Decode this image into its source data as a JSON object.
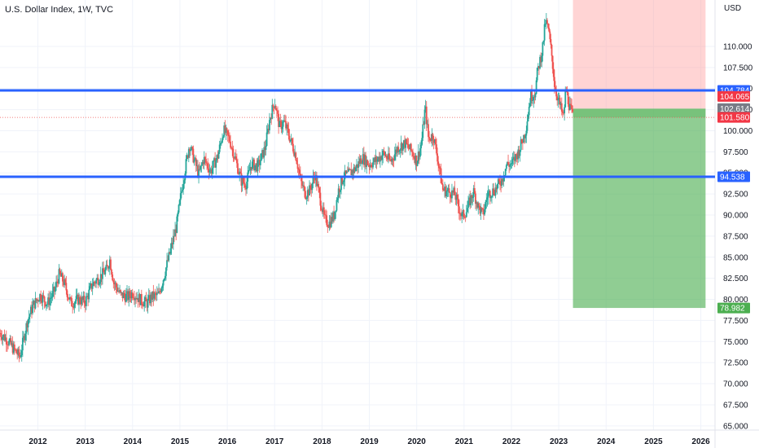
{
  "header": {
    "title": "U.S. Dollar Index, 1W, TVC",
    "currency": "USD"
  },
  "colors": {
    "up": "#26a69a",
    "down": "#ef5350",
    "level_line": "#2962ff",
    "target_zone": "#4caf50",
    "stop_zone": "#ff9999",
    "current_price_line": "#ef5350"
  },
  "chart_data": {
    "type": "candlestick",
    "interval": "1W",
    "xlabel": "",
    "ylabel": "",
    "x_ticks": [
      "2012",
      "2013",
      "2014",
      "2015",
      "2016",
      "2017",
      "2018",
      "2019",
      "2020",
      "2021",
      "2022",
      "2023",
      "2024",
      "2025",
      "2026"
    ],
    "y_ticks": [
      "65.000",
      "67.500",
      "70.000",
      "72.500",
      "75.000",
      "77.500",
      "80.000",
      "82.500",
      "85.000",
      "87.500",
      "90.000",
      "92.500",
      "95.000",
      "97.500",
      "100.000",
      "102.500",
      "105.000",
      "107.500",
      "110.000"
    ],
    "ylim": [
      64.5,
      115.5
    ],
    "xlim": [
      2011.2,
      2026.3
    ],
    "grid": true,
    "price_path": [
      [
        2011.2,
        76.0
      ],
      [
        2011.35,
        75.2
      ],
      [
        2011.5,
        74.0
      ],
      [
        2011.62,
        73.2
      ],
      [
        2011.78,
        77.5
      ],
      [
        2011.9,
        79.3
      ],
      [
        2012.05,
        80.5
      ],
      [
        2012.2,
        79.5
      ],
      [
        2012.35,
        81.0
      ],
      [
        2012.45,
        83.0
      ],
      [
        2012.55,
        82.0
      ],
      [
        2012.7,
        79.5
      ],
      [
        2012.85,
        80.0
      ],
      [
        2013.0,
        79.7
      ],
      [
        2013.15,
        81.8
      ],
      [
        2013.3,
        82.6
      ],
      [
        2013.45,
        83.5
      ],
      [
        2013.52,
        84.7
      ],
      [
        2013.6,
        82.0
      ],
      [
        2013.75,
        80.5
      ],
      [
        2013.9,
        80.3
      ],
      [
        2014.0,
        80.8
      ],
      [
        2014.15,
        80.0
      ],
      [
        2014.3,
        79.5
      ],
      [
        2014.4,
        80.3
      ],
      [
        2014.55,
        80.5
      ],
      [
        2014.65,
        82.5
      ],
      [
        2014.8,
        85.8
      ],
      [
        2014.92,
        88.5
      ],
      [
        2015.05,
        93.5
      ],
      [
        2015.2,
        98.4
      ],
      [
        2015.3,
        96.5
      ],
      [
        2015.4,
        94.8
      ],
      [
        2015.5,
        96.7
      ],
      [
        2015.65,
        95.2
      ],
      [
        2015.8,
        97.0
      ],
      [
        2015.92,
        100.1
      ],
      [
        2016.05,
        98.9
      ],
      [
        2016.15,
        97.0
      ],
      [
        2016.3,
        94.0
      ],
      [
        2016.4,
        93.7
      ],
      [
        2016.5,
        96.0
      ],
      [
        2016.65,
        95.8
      ],
      [
        2016.8,
        98.0
      ],
      [
        2016.9,
        101.5
      ],
      [
        2017.0,
        103.5
      ],
      [
        2017.1,
        100.5
      ],
      [
        2017.2,
        101.0
      ],
      [
        2017.3,
        99.5
      ],
      [
        2017.45,
        97.0
      ],
      [
        2017.55,
        94.0
      ],
      [
        2017.65,
        92.5
      ],
      [
        2017.75,
        93.0
      ],
      [
        2017.85,
        94.8
      ],
      [
        2017.95,
        92.2
      ],
      [
        2018.05,
        89.5
      ],
      [
        2018.15,
        89.0
      ],
      [
        2018.25,
        89.9
      ],
      [
        2018.35,
        93.0
      ],
      [
        2018.45,
        94.5
      ],
      [
        2018.55,
        94.8
      ],
      [
        2018.7,
        95.5
      ],
      [
        2018.85,
        96.8
      ],
      [
        2019.0,
        96.0
      ],
      [
        2019.15,
        96.5
      ],
      [
        2019.3,
        97.3
      ],
      [
        2019.45,
        96.3
      ],
      [
        2019.6,
        98.0
      ],
      [
        2019.75,
        98.5
      ],
      [
        2019.9,
        97.5
      ],
      [
        2020.0,
        96.4
      ],
      [
        2020.1,
        98.5
      ],
      [
        2020.18,
        102.8
      ],
      [
        2020.25,
        99.0
      ],
      [
        2020.35,
        99.5
      ],
      [
        2020.45,
        96.5
      ],
      [
        2020.55,
        93.0
      ],
      [
        2020.65,
        92.8
      ],
      [
        2020.8,
        92.5
      ],
      [
        2020.95,
        89.8
      ],
      [
        2021.05,
        90.5
      ],
      [
        2021.2,
        92.8
      ],
      [
        2021.3,
        91.0
      ],
      [
        2021.4,
        90.0
      ],
      [
        2021.5,
        92.5
      ],
      [
        2021.65,
        93.0
      ],
      [
        2021.8,
        94.2
      ],
      [
        2021.9,
        96.0
      ],
      [
        2022.0,
        96.0
      ],
      [
        2022.15,
        97.5
      ],
      [
        2022.3,
        100.0
      ],
      [
        2022.4,
        104.0
      ],
      [
        2022.5,
        104.5
      ],
      [
        2022.55,
        107.0
      ],
      [
        2022.65,
        109.5
      ],
      [
        2022.72,
        113.0
      ],
      [
        2022.78,
        112.0
      ],
      [
        2022.85,
        109.0
      ],
      [
        2022.92,
        105.0
      ],
      [
        2023.0,
        103.5
      ],
      [
        2023.1,
        101.5
      ],
      [
        2023.15,
        105.0
      ],
      [
        2023.22,
        103.0
      ],
      [
        2023.3,
        101.6
      ]
    ],
    "horizontal_levels": [
      104.784,
      94.538
    ],
    "current_price": 101.58,
    "position": {
      "entry": 102.614,
      "stop": 115.5,
      "target": 78.982,
      "start": 2023.3,
      "end": 2026.1
    },
    "price_labels": [
      {
        "value": 104.784,
        "label": "104.784",
        "color": "#2962ff"
      },
      {
        "value": 104.065,
        "label": "104.065",
        "color": "#f23645"
      },
      {
        "value": 102.614,
        "label": "102.614",
        "color": "#787b86"
      },
      {
        "value": 101.58,
        "label": "101.580",
        "color": "#f23645"
      },
      {
        "value": 94.538,
        "label": "94.538",
        "color": "#2962ff"
      },
      {
        "value": 78.982,
        "label": "78.982",
        "color": "#4caf50"
      }
    ]
  }
}
